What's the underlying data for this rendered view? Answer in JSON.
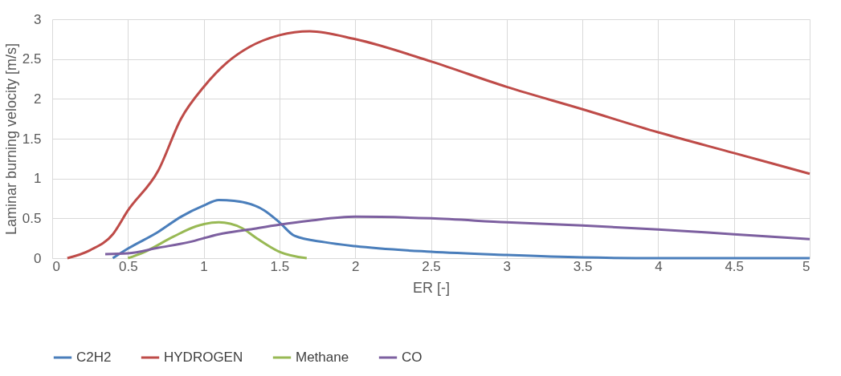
{
  "chart_data": {
    "type": "line",
    "xlabel": "ER [-]",
    "ylabel": "Laminar burning velocity [m/s]",
    "xlim": [
      0,
      5
    ],
    "xticks": [
      0,
      0.5,
      1,
      1.5,
      2,
      2.5,
      3,
      3.5,
      4,
      4.5,
      5
    ],
    "ylim": [
      0,
      3
    ],
    "yticks": [
      0,
      0.5,
      1,
      1.5,
      2,
      2.5,
      3
    ],
    "grid": true,
    "legend": "bottom",
    "marker": "none",
    "line_style": "solid",
    "series": [
      {
        "name": "C2H2",
        "color": "#4a7ebb",
        "x": [
          0.4,
          0.5,
          0.7,
          0.85,
          1.0,
          1.1,
          1.2,
          1.4,
          1.5,
          1.6,
          1.8,
          2.0,
          2.5,
          3.0,
          3.5,
          4.0,
          5.0
        ],
        "values": [
          0,
          0.12,
          0.33,
          0.52,
          0.66,
          0.73,
          0.72,
          0.6,
          0.45,
          0.28,
          0.2,
          0.15,
          0.08,
          0.04,
          0.01,
          0,
          0
        ]
      },
      {
        "name": "HYDROGEN",
        "color": "#be4b48",
        "x": [
          0.1,
          0.25,
          0.4,
          0.5,
          0.7,
          0.85,
          1.0,
          1.15,
          1.3,
          1.5,
          1.7,
          2.0,
          2.5,
          3.0,
          3.5,
          4.0,
          4.5,
          5.0
        ],
        "values": [
          0,
          0.1,
          0.3,
          0.6,
          1.1,
          1.75,
          2.15,
          2.45,
          2.65,
          2.8,
          2.85,
          2.75,
          2.47,
          2.15,
          1.87,
          1.58,
          1.32,
          1.06
        ]
      },
      {
        "name": "Methane",
        "color": "#98b954",
        "x": [
          0.5,
          0.6,
          0.8,
          0.95,
          1.1,
          1.25,
          1.35,
          1.5,
          1.68
        ],
        "values": [
          0,
          0.07,
          0.27,
          0.4,
          0.45,
          0.38,
          0.25,
          0.08,
          0
        ]
      },
      {
        "name": "CO",
        "color": "#7d60a0",
        "x": [
          0.35,
          0.5,
          0.7,
          0.9,
          1.1,
          1.3,
          1.5,
          1.7,
          2.0,
          2.5,
          3.0,
          3.5,
          4.0,
          4.5,
          5.0
        ],
        "values": [
          0.05,
          0.06,
          0.13,
          0.2,
          0.3,
          0.36,
          0.42,
          0.47,
          0.52,
          0.5,
          0.45,
          0.41,
          0.36,
          0.3,
          0.24
        ]
      }
    ]
  }
}
